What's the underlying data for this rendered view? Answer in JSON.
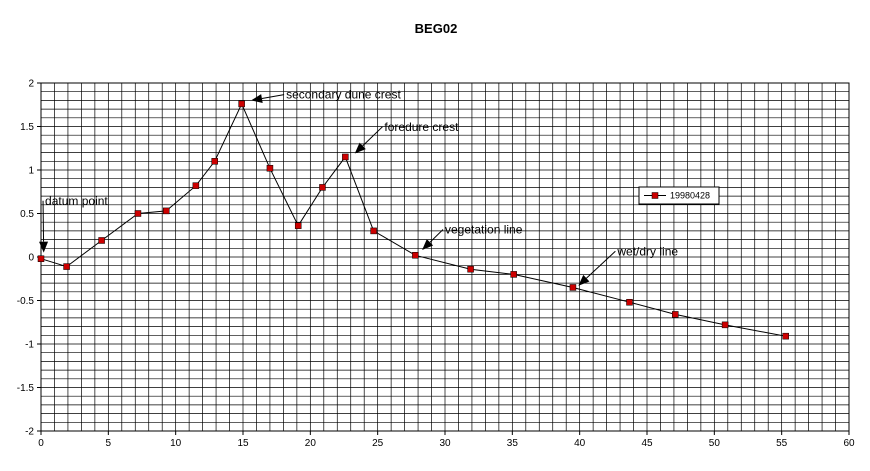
{
  "chart_data": {
    "type": "line",
    "title": "BEG02",
    "xlabel": "",
    "ylabel": "",
    "xlim": [
      0,
      60
    ],
    "ylim": [
      -2,
      2
    ],
    "xticks": [
      0,
      5,
      10,
      15,
      20,
      25,
      30,
      35,
      40,
      45,
      50,
      55,
      60
    ],
    "yticks": [
      -2,
      -1.5,
      -1,
      -0.5,
      0,
      0.5,
      1,
      1.5,
      2
    ],
    "x_grid_step": 1,
    "y_grid_step": 0.1,
    "grid": true,
    "legend_position": "right",
    "series": [
      {
        "name": "19980428",
        "color": "#000000",
        "marker_color": "#cc0000",
        "x": [
          0,
          1.9,
          4.5,
          7.2,
          9.3,
          11.5,
          12.9,
          14.9,
          17.0,
          19.1,
          20.9,
          22.6,
          24.7,
          27.8,
          31.9,
          35.1,
          39.5,
          43.7,
          47.1,
          50.8,
          55.3
        ],
        "y": [
          -0.02,
          -0.11,
          0.19,
          0.5,
          0.53,
          0.82,
          1.1,
          1.76,
          1.02,
          0.36,
          0.8,
          1.15,
          0.3,
          0.02,
          -0.14,
          -0.2,
          -0.35,
          -0.52,
          -0.66,
          -0.78,
          -0.91
        ]
      }
    ],
    "annotations": [
      {
        "text": "datum point",
        "x": 0.3,
        "y": 0.6,
        "arrow_to": [
          0.2,
          0.05
        ]
      },
      {
        "text": "secondary dune crest",
        "x": 18.2,
        "y": 1.82,
        "arrow_to": [
          15.6,
          1.8
        ]
      },
      {
        "text": "foredure crest",
        "x": 25.5,
        "y": 1.45,
        "arrow_to": [
          23.3,
          1.19
        ]
      },
      {
        "text": "vegetation line",
        "x": 30.0,
        "y": 0.27,
        "arrow_to": [
          28.3,
          0.08
        ]
      },
      {
        "text": "wet/dry line",
        "x": 42.8,
        "y": 0.02,
        "arrow_to": [
          39.9,
          -0.33
        ]
      }
    ]
  }
}
